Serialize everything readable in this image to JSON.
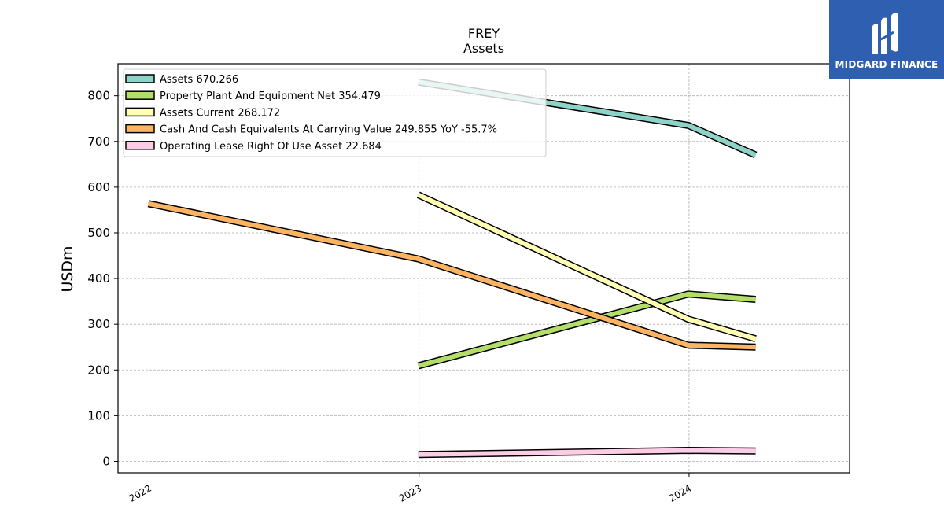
{
  "chart_data": {
    "type": "line",
    "title": "FREY",
    "subtitle": "Assets",
    "xlabel": "",
    "ylabel": "USDm",
    "x_ticks": [
      "2022",
      "2023",
      "2024"
    ],
    "y_ticks": [
      0,
      100,
      200,
      300,
      400,
      500,
      600,
      700,
      800
    ],
    "ylim": [
      -25,
      870
    ],
    "xlim": [
      "2021-11-20",
      "2024-08-05"
    ],
    "grid": true,
    "legend_position": "top-left",
    "series": [
      {
        "name": "Assets",
        "legend_label": "Assets  670.266",
        "color": "#8dd3c7",
        "points": [
          [
            "2022-12-31",
            830
          ],
          [
            "2023-12-31",
            735
          ],
          [
            "2024-03-31",
            670.266
          ]
        ]
      },
      {
        "name": "Property Plant And Equipment Net",
        "legend_label": "Property Plant And Equipment Net  354.479",
        "color": "#b3de69",
        "points": [
          [
            "2022-12-31",
            209
          ],
          [
            "2023-12-31",
            366
          ],
          [
            "2024-03-31",
            354.479
          ]
        ]
      },
      {
        "name": "Assets Current",
        "legend_label": "Assets Current  268.172",
        "color": "#ffffb3",
        "points": [
          [
            "2022-12-31",
            583
          ],
          [
            "2023-12-31",
            311
          ],
          [
            "2024-03-31",
            268.172
          ]
        ]
      },
      {
        "name": "Cash And Cash Equivalents At Carrying Value",
        "legend_label": "Cash And Cash Equivalents At Carrying Value  249.855 YoY -55.7%",
        "color": "#fdb462",
        "points": [
          [
            "2021-12-31",
            564
          ],
          [
            "2022-12-31",
            443
          ],
          [
            "2023-12-31",
            254
          ],
          [
            "2024-03-31",
            249.855
          ]
        ]
      },
      {
        "name": "Operating Lease Right Of Use Asset",
        "legend_label": "Operating Lease Right Of Use Asset  22.684",
        "color": "#fccde5",
        "points": [
          [
            "2022-12-31",
            15
          ],
          [
            "2023-12-31",
            24
          ],
          [
            "2024-03-31",
            22.684
          ]
        ]
      }
    ]
  },
  "logo": {
    "text": "MIDGARD FINANCE",
    "background": "#2e5fb0"
  }
}
